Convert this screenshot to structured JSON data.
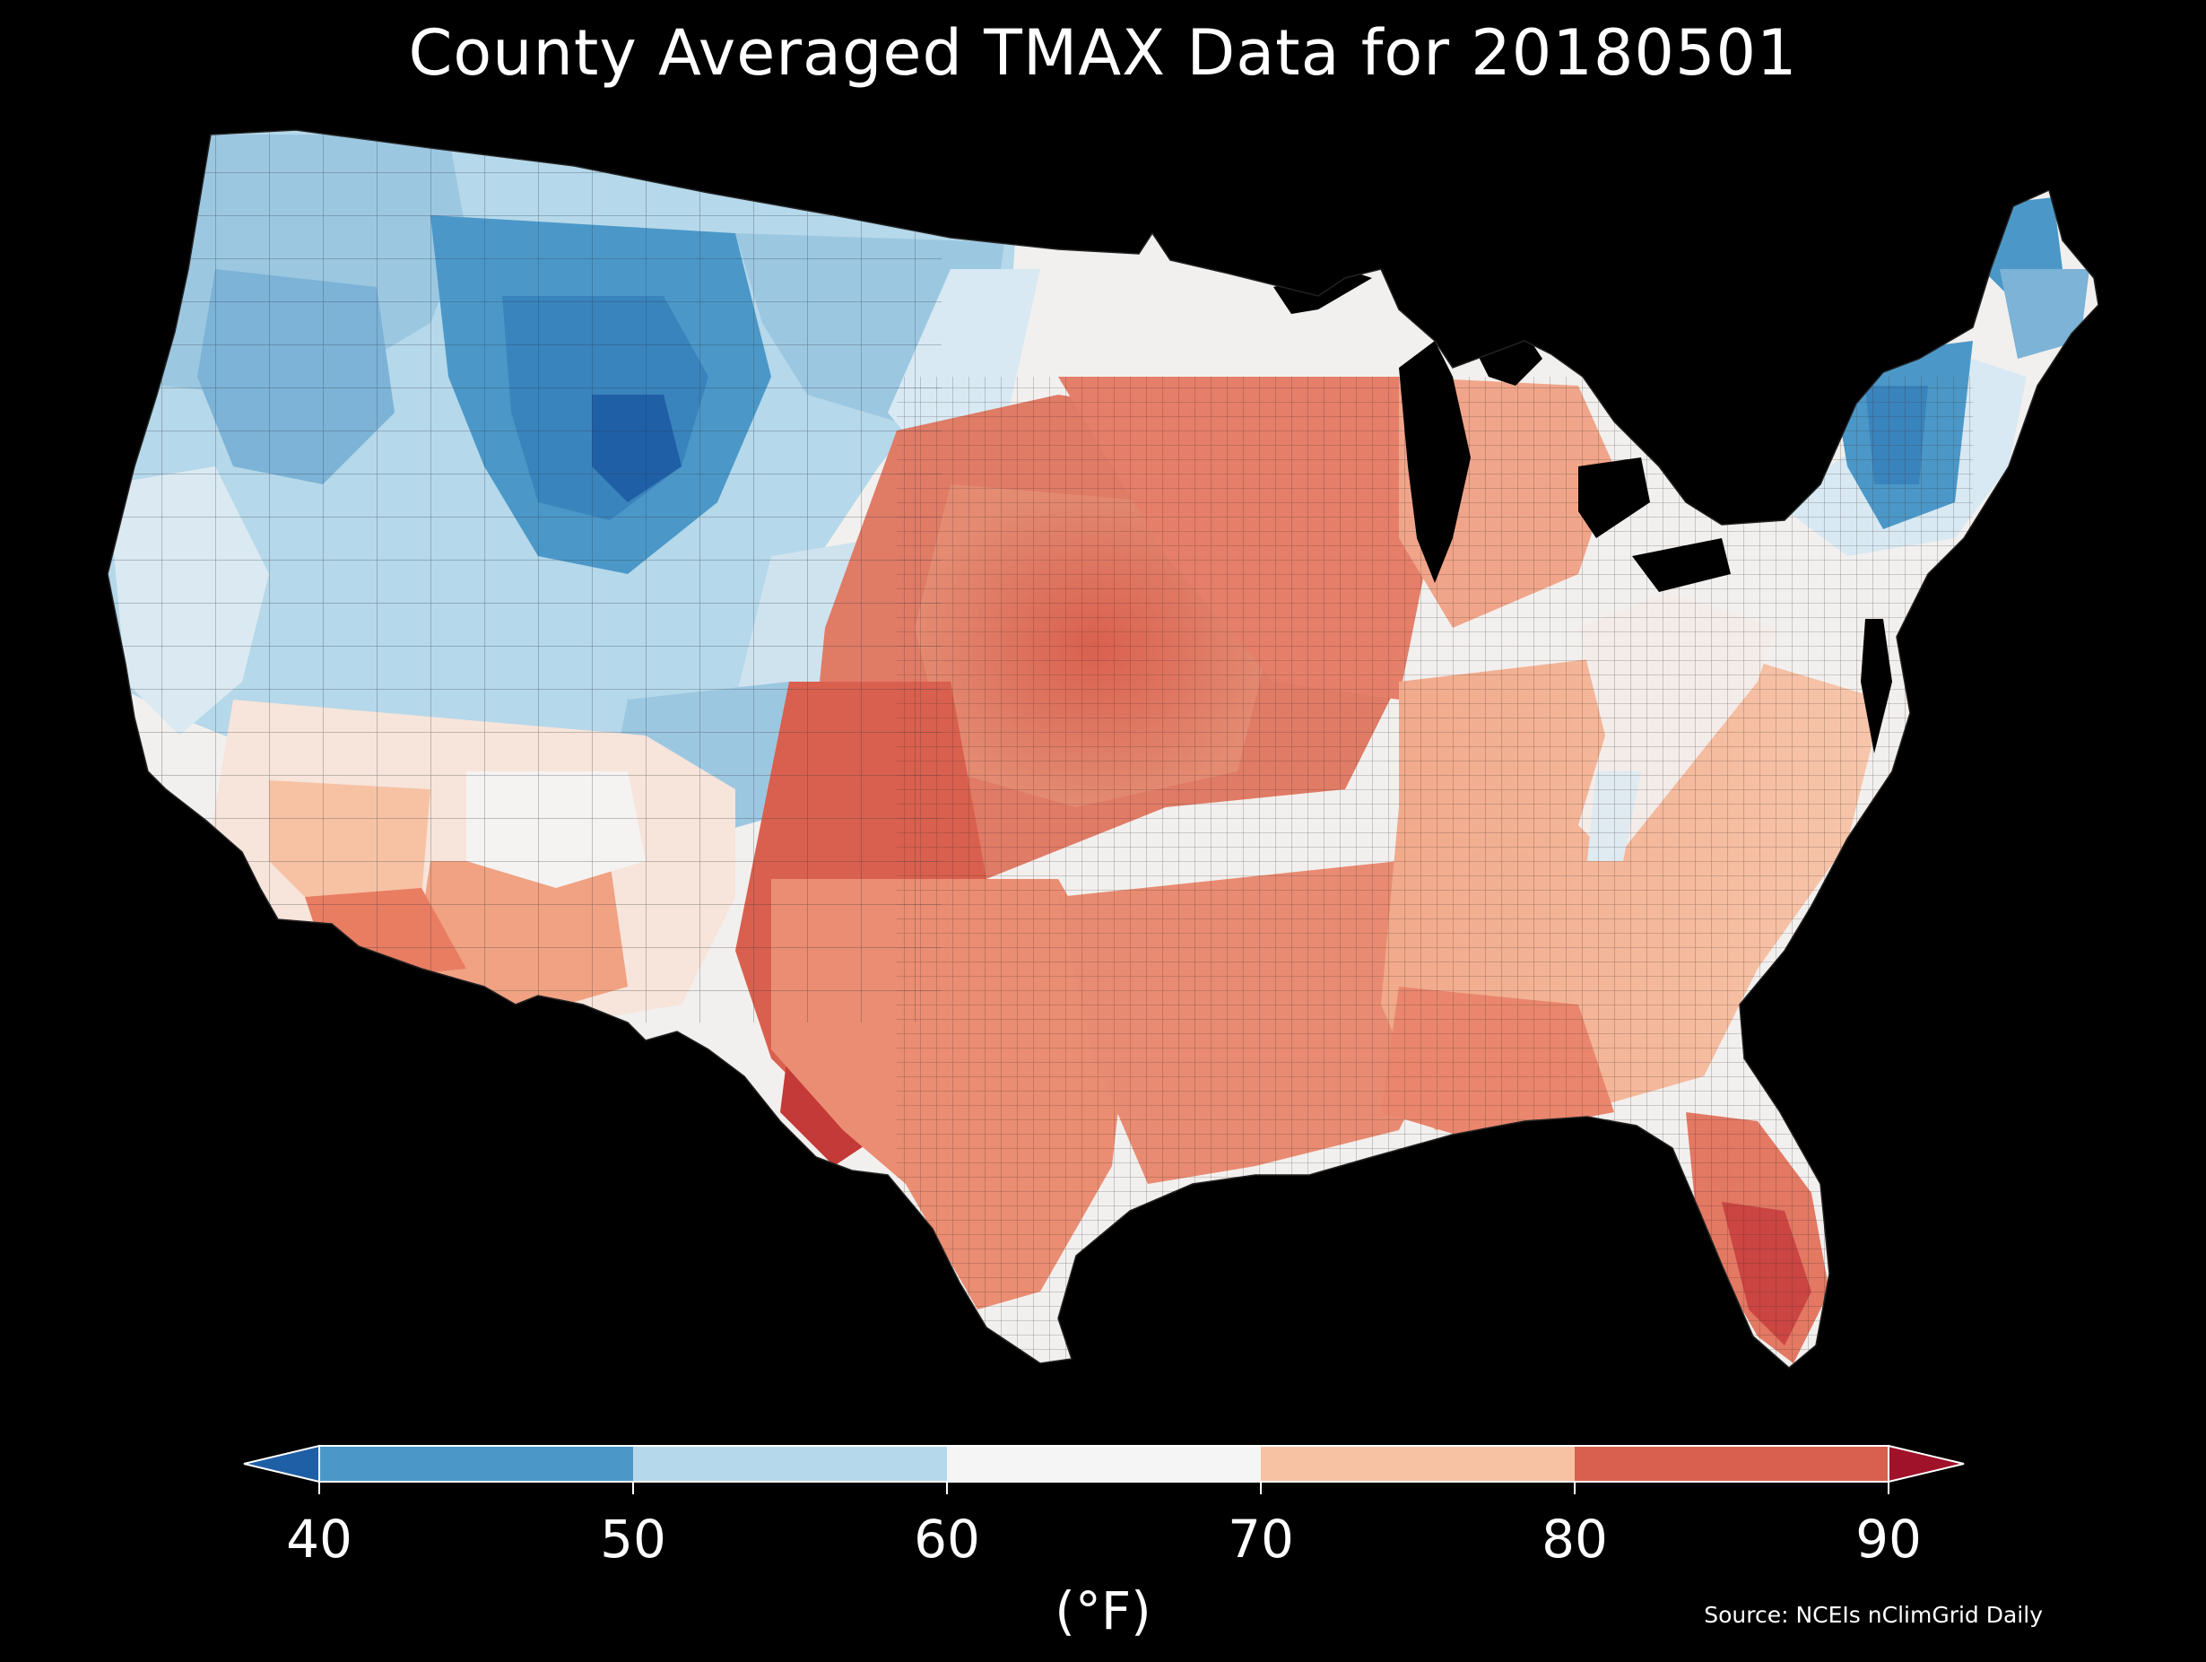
{
  "title": "County Averaged TMAX Data for 20180501",
  "colorbar": {
    "ticks": [
      "40",
      "50",
      "60",
      "70",
      "80",
      "90"
    ],
    "unit": "(°F)",
    "bins": [
      {
        "range": "<40",
        "color": "#1f5fa6"
      },
      {
        "range": "40-50",
        "color": "#4b98c8"
      },
      {
        "range": "50-60",
        "color": "#b5d8ea"
      },
      {
        "range": "60-70",
        "color": "#f5f5f5"
      },
      {
        "range": "70-80",
        "color": "#f7c2a4"
      },
      {
        "range": "80-90",
        "color": "#d9604e"
      },
      {
        "range": ">90",
        "color": "#a0112a"
      }
    ]
  },
  "source": "Source: NCEIs nClimGrid Daily",
  "colors": {
    "background": "#000000",
    "text": "#ffffff",
    "water": "#000000"
  }
}
